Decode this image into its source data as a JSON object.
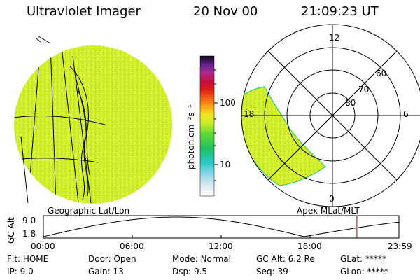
{
  "header": {
    "instrument": "Ultraviolet Imager",
    "date": "20 Nov 00",
    "time": "21:09:23 UT"
  },
  "colorbar": {
    "unit_label": "photon cm⁻²s⁻¹",
    "ticks": [
      "100",
      "10"
    ]
  },
  "polar_plot": {
    "mlt_labels": {
      "top": "12",
      "left": "18",
      "right": "6",
      "bottom": "0"
    },
    "lat_labels": [
      "60",
      "70",
      "80"
    ]
  },
  "panel_labels": {
    "left": "Geographic Lat/Lon",
    "right": "Apex MLat/MLT"
  },
  "altitude_plot": {
    "axis_title": "GC Alt",
    "y_ticks": [
      "9.0",
      "1.8"
    ],
    "x_ticks": [
      "00:00",
      "06:00",
      "12:00",
      "18:00",
      "23:59"
    ],
    "current_marker_hours": 21.16
  },
  "status": {
    "row1": [
      {
        "label": "Flt:",
        "value": "HOME"
      },
      {
        "label": "Door:",
        "value": "Open"
      },
      {
        "label": "Mode:",
        "value": "Normal"
      },
      {
        "label": "GC Alt:",
        "value": "6.2 Re"
      },
      {
        "label": "GLat:",
        "value": "*****"
      }
    ],
    "row2": [
      {
        "label": "IP:",
        "value": "9.0"
      },
      {
        "label": "Gain:",
        "value": "13"
      },
      {
        "label": "Dsp:",
        "value": "9.5"
      },
      {
        "label": "Seq:",
        "value": "39"
      },
      {
        "label": "GLon:",
        "value": "*****"
      }
    ]
  },
  "colors": {
    "image_fill": "#d8f028",
    "marker": "#cc0000"
  }
}
